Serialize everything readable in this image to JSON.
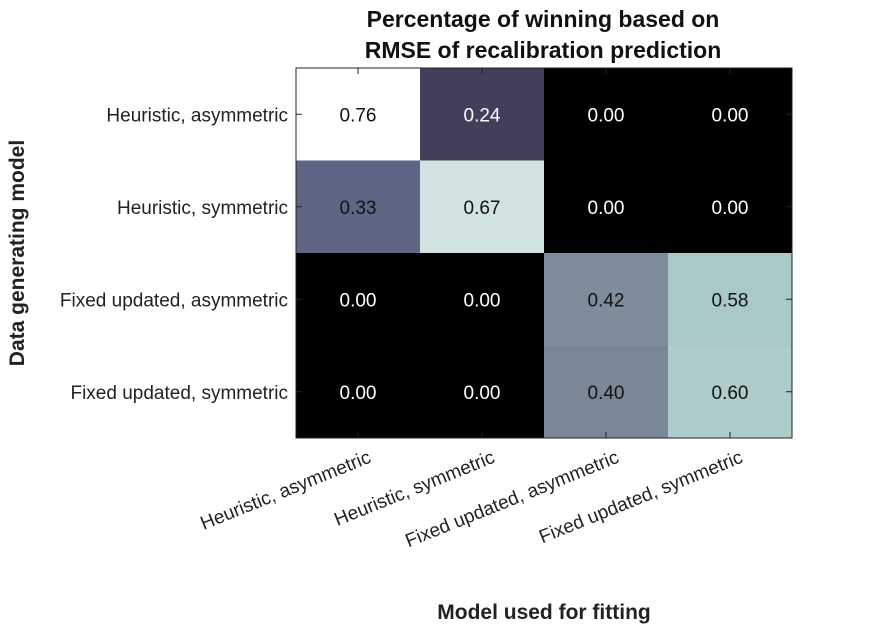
{
  "chart_data": {
    "type": "heatmap",
    "title": [
      "Percentage of winning based on",
      "RMSE of recalibration prediction"
    ],
    "xlabel": "Model used for fitting",
    "ylabel": "Data generating model",
    "x_categories": [
      "Heuristic, asymmetric",
      "Heuristic, symmetric",
      "Fixed updated, asymmetric",
      "Fixed updated, symmetric"
    ],
    "y_categories": [
      "Heuristic, asymmetric",
      "Heuristic, symmetric",
      "Fixed updated, asymmetric",
      "Fixed updated, symmetric"
    ],
    "values": [
      [
        0.76,
        0.24,
        0.0,
        0.0
      ],
      [
        0.33,
        0.67,
        0.0,
        0.0
      ],
      [
        0.0,
        0.0,
        0.42,
        0.58
      ],
      [
        0.0,
        0.0,
        0.4,
        0.6
      ]
    ],
    "value_format": "0.00",
    "colormap": "bone",
    "colors": {
      "0.00": "#000000",
      "0.24": "#433f5b",
      "0.33": "#5f6584",
      "0.40": "#7a8796",
      "0.42": "#7e8d9c",
      "0.58": "#a9c8c8",
      "0.60": "#aeccca",
      "0.67": "#d2e4e2",
      "0.76": "#ffffff"
    },
    "grid": false,
    "legend": "none"
  }
}
